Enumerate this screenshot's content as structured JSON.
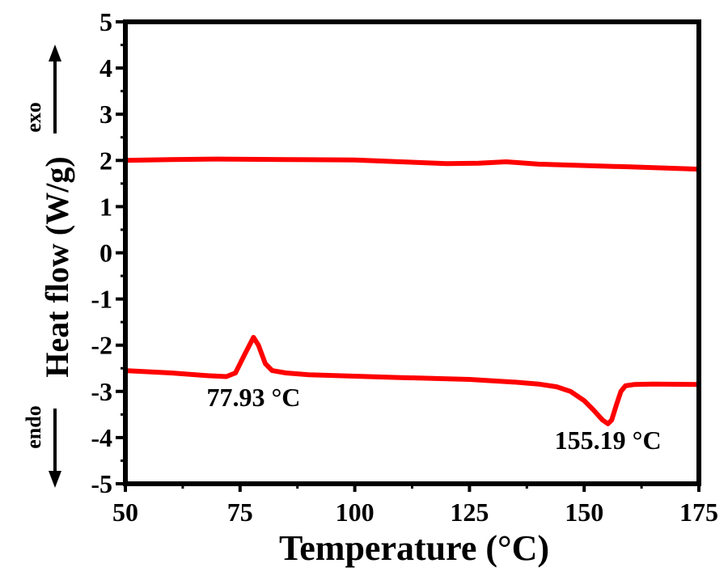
{
  "chart_data": {
    "type": "line",
    "xlabel": "Temperature (°C)",
    "ylabel": "Heat flow (W/g)",
    "exo_label": "exo",
    "endo_label": "endo",
    "xlim": [
      50,
      175
    ],
    "ylim": [
      -5,
      5
    ],
    "xticks": [
      "50",
      "75",
      "100",
      "125",
      "150",
      "175"
    ],
    "yticks": [
      "-5",
      "-4",
      "-3",
      "-2",
      "-1",
      "0",
      "1",
      "2",
      "3",
      "4",
      "5"
    ],
    "grid": false,
    "line_color": "#ff0000",
    "series": [
      {
        "name": "upper",
        "x": [
          50,
          60,
          70,
          85,
          100,
          110,
          120,
          127,
          133,
          140,
          150,
          160,
          175
        ],
        "y": [
          2.0,
          2.02,
          2.03,
          2.02,
          2.01,
          1.97,
          1.93,
          1.94,
          1.97,
          1.92,
          1.89,
          1.86,
          1.81
        ]
      },
      {
        "name": "lower",
        "x": [
          50,
          60,
          68,
          72,
          74,
          76,
          77.93,
          79,
          80.5,
          82,
          85,
          90,
          100,
          110,
          125,
          135,
          140,
          144,
          147,
          150,
          152,
          154,
          155.19,
          156,
          157,
          158,
          159,
          161,
          165,
          175
        ],
        "y": [
          -2.55,
          -2.6,
          -2.66,
          -2.68,
          -2.6,
          -2.2,
          -1.83,
          -2.0,
          -2.4,
          -2.55,
          -2.6,
          -2.64,
          -2.67,
          -2.7,
          -2.74,
          -2.8,
          -2.84,
          -2.9,
          -3.0,
          -3.2,
          -3.4,
          -3.62,
          -3.7,
          -3.62,
          -3.3,
          -3.0,
          -2.88,
          -2.85,
          -2.84,
          -2.85
        ]
      }
    ],
    "annotations": [
      {
        "text": "77.93 °C",
        "x": 77.93,
        "y": -3.32
      },
      {
        "text": "155.19 °C",
        "x": 155.19,
        "y": -4.25
      }
    ]
  }
}
